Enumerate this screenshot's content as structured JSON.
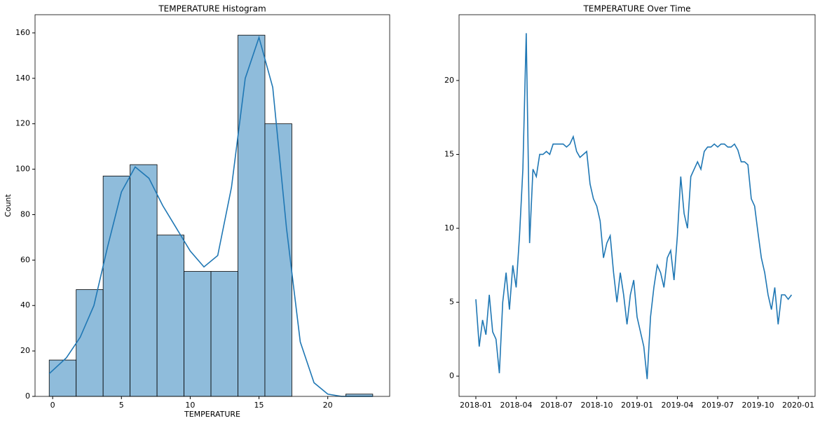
{
  "chart_data": [
    {
      "type": "histogram",
      "title": "TEMPERATURE Histogram",
      "xlabel": "TEMPERATURE",
      "ylabel": "Count",
      "bins": [
        -0.25,
        1.71,
        3.67,
        5.63,
        7.59,
        9.55,
        11.51,
        13.47,
        15.43,
        17.39,
        19.35,
        21.31,
        23.27
      ],
      "counts": [
        16,
        47,
        97,
        102,
        71,
        55,
        55,
        159,
        120,
        0,
        0,
        1
      ],
      "color": "#8fbcdb",
      "edgecolor": "#000000",
      "kde": {
        "color": "#1f77b4",
        "x": [
          -0.25,
          1,
          2,
          3,
          4,
          5,
          6,
          7,
          8,
          9,
          10,
          11,
          12,
          13,
          14,
          15,
          16,
          17,
          18,
          19,
          20,
          21,
          23.27
        ],
        "values": [
          10,
          17,
          26,
          40,
          66,
          90,
          101,
          96,
          84,
          74,
          64,
          57,
          62,
          92,
          140,
          158,
          136,
          74,
          24,
          6,
          1,
          0,
          0
        ]
      },
      "xlim": [
        -1.28,
        24.5
      ],
      "xticks": [
        0,
        5,
        10,
        15,
        20
      ],
      "ylim": [
        0,
        168
      ],
      "yticks": [
        0,
        20,
        40,
        60,
        80,
        100,
        120,
        140,
        160
      ]
    },
    {
      "type": "line",
      "title": "TEMPERATURE Over Time",
      "color": "#1f77b4",
      "x": [
        0,
        0.25,
        0.5,
        0.75,
        1,
        1.25,
        1.5,
        1.75,
        2,
        2.25,
        2.5,
        2.75,
        3,
        3.25,
        3.5,
        3.75,
        4,
        4.25,
        4.5,
        4.75,
        5,
        5.25,
        5.5,
        5.75,
        6,
        6.25,
        6.5,
        6.75,
        7,
        7.25,
        7.5,
        7.75,
        8,
        8.25,
        8.5,
        8.75,
        9,
        9.25,
        9.5,
        9.75,
        10,
        10.25,
        10.5,
        10.75,
        11,
        11.25,
        11.5,
        11.75,
        12,
        12.25,
        12.5,
        12.75,
        13,
        13.25,
        13.5,
        13.75,
        14,
        14.25,
        14.5,
        14.75,
        15,
        15.25,
        15.5,
        15.75,
        16,
        16.25,
        16.5,
        16.75,
        17,
        17.25,
        17.5,
        17.75,
        18,
        18.25,
        18.5,
        18.75,
        19,
        19.25,
        19.5,
        19.75,
        20,
        20.25,
        20.5,
        20.75,
        21,
        21.25,
        21.5,
        21.75,
        22,
        22.25,
        22.5,
        22.75,
        23,
        23.25,
        23.5
      ],
      "values": [
        5.2,
        2,
        3.8,
        2.8,
        5.5,
        3,
        2.5,
        0.2,
        5,
        7,
        4.5,
        7.5,
        6,
        9.5,
        14,
        23.2,
        9,
        14,
        13.5,
        15,
        15,
        15.2,
        15,
        15.7,
        15.7,
        15.7,
        15.7,
        15.5,
        15.7,
        16.2,
        15.2,
        14.8,
        15,
        15.2,
        13,
        12,
        11.5,
        10.5,
        8,
        9,
        9.5,
        7,
        5,
        7,
        5.5,
        3.5,
        5.5,
        6.5,
        4,
        3,
        2,
        -0.2,
        4,
        6,
        7.5,
        7,
        6,
        8,
        8.5,
        6.5,
        9.5,
        13.5,
        11,
        10,
        13.5,
        14,
        14.5,
        14,
        15.2,
        15.5,
        15.5,
        15.7,
        15.5,
        15.7,
        15.7,
        15.5,
        15.5,
        15.7,
        15.3,
        14.5,
        14.5,
        14.3,
        12,
        11.5,
        9.7,
        8,
        7,
        5.5,
        4.5,
        6,
        3.5,
        5.5,
        5.5,
        5.2,
        5.5
      ],
      "xlim": [
        -1.25,
        25.25
      ],
      "xticks": [
        {
          "value": 0,
          "label": "2018-01"
        },
        {
          "value": 3,
          "label": "2018-04"
        },
        {
          "value": 6,
          "label": "2018-07"
        },
        {
          "value": 9,
          "label": "2018-10"
        },
        {
          "value": 12,
          "label": "2019-01"
        },
        {
          "value": 15,
          "label": "2019-04"
        },
        {
          "value": 18,
          "label": "2019-07"
        },
        {
          "value": 21,
          "label": "2019-10"
        },
        {
          "value": 24,
          "label": "2020-01"
        }
      ],
      "ylim": [
        -1.37,
        24.45
      ],
      "yticks": [
        0,
        5,
        10,
        15,
        20
      ]
    }
  ]
}
